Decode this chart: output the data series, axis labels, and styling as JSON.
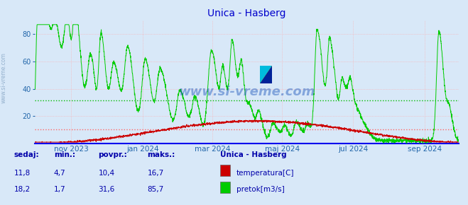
{
  "title": "Unica - Hasberg",
  "title_color": "#0000cc",
  "bg_color": "#d8e8f8",
  "plot_bg_color": "#d8e8f8",
  "xticklabels": [
    "nov 2023",
    "jan 2024",
    "mar 2024",
    "maj 2024",
    "jul 2024",
    "sep 2024"
  ],
  "ylim": [
    0,
    90
  ],
  "yticks": [
    20,
    40,
    60,
    80
  ],
  "temp_color": "#cc0000",
  "flow_color": "#00cc00",
  "temp_avg_line": 10.4,
  "flow_avg_line": 31.6,
  "temp_avg_color": "#ff6666",
  "flow_avg_color": "#00bb00",
  "grid_h_color": "#ffaaaa",
  "grid_v_color": "#ffaaaa",
  "watermark": "www.si-vreme.com",
  "watermark_color": "#2255bb",
  "left_label": "www.si-vreme.com",
  "left_label_color": "#7799bb",
  "legend_title": "Unica - Hasberg",
  "legend_title_color": "#0000aa",
  "legend_text_color": "#0000aa",
  "stats_header": [
    "sedaj:",
    "min.:",
    "povpr.:",
    "maks.:"
  ],
  "stats_temp": [
    "11,8",
    "4,7",
    "10,4",
    "16,7"
  ],
  "stats_flow": [
    "18,2",
    "1,7",
    "31,6",
    "85,7"
  ],
  "stats_color": "#0000aa",
  "bottom_line_color": "#0000ee"
}
